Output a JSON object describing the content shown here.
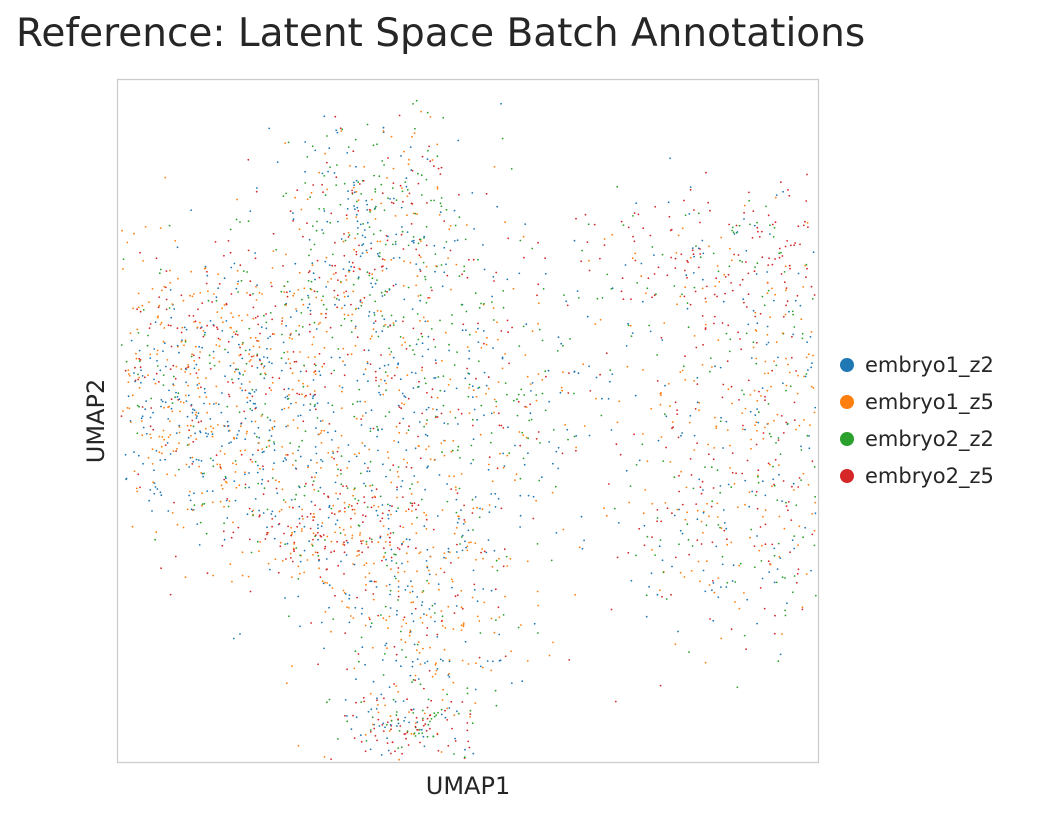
{
  "chart_data": {
    "type": "scatter",
    "title": "Reference: Latent Space Batch Annotations",
    "xlabel": "UMAP1",
    "ylabel": "UMAP2",
    "xticks": [],
    "yticks": [],
    "grid": false,
    "legend_position": "right-outside",
    "series": [
      {
        "name": "embryo1_z2",
        "color": "#1f77b4"
      },
      {
        "name": "embryo1_z5",
        "color": "#ff7f0e"
      },
      {
        "name": "embryo2_z2",
        "color": "#2ca02c"
      },
      {
        "name": "embryo2_z5",
        "color": "#d62728"
      }
    ],
    "point_density": {
      "lobes": [
        {
          "label": "top",
          "cx": -0.35,
          "cy": 0.75,
          "sx": 0.22,
          "sy": 0.3,
          "weight": 0.14,
          "mix": [
            0.25,
            0.2,
            0.3,
            0.25
          ]
        },
        {
          "label": "upper-left",
          "cx": -0.95,
          "cy": 0.35,
          "sx": 0.3,
          "sy": 0.22,
          "weight": 0.12,
          "mix": [
            0.15,
            0.4,
            0.15,
            0.3
          ]
        },
        {
          "label": "left",
          "cx": -1.0,
          "cy": -0.05,
          "sx": 0.32,
          "sy": 0.22,
          "weight": 0.14,
          "mix": [
            0.45,
            0.4,
            0.05,
            0.1
          ]
        },
        {
          "label": "center",
          "cx": -0.05,
          "cy": 0.05,
          "sx": 0.35,
          "sy": 0.3,
          "weight": 0.13,
          "mix": [
            0.3,
            0.25,
            0.3,
            0.15
          ]
        },
        {
          "label": "center-lower-left",
          "cx": -0.55,
          "cy": -0.45,
          "sx": 0.25,
          "sy": 0.15,
          "weight": 0.08,
          "mix": [
            0.1,
            0.35,
            0.15,
            0.4
          ]
        },
        {
          "label": "bottom",
          "cx": -0.2,
          "cy": -0.8,
          "sx": 0.2,
          "sy": 0.28,
          "weight": 0.11,
          "mix": [
            0.35,
            0.4,
            0.1,
            0.15
          ]
        },
        {
          "label": "bottom-tip",
          "cx": -0.2,
          "cy": -1.3,
          "sx": 0.14,
          "sy": 0.08,
          "weight": 0.04,
          "mix": [
            0.1,
            0.1,
            0.35,
            0.45
          ]
        },
        {
          "label": "upper-right",
          "cx": 0.95,
          "cy": 0.7,
          "sx": 0.3,
          "sy": 0.15,
          "weight": 0.07,
          "mix": [
            0.15,
            0.1,
            0.2,
            0.55
          ]
        },
        {
          "label": "right",
          "cx": 1.1,
          "cy": 0.05,
          "sx": 0.3,
          "sy": 0.35,
          "weight": 0.12,
          "mix": [
            0.2,
            0.35,
            0.2,
            0.25
          ]
        },
        {
          "label": "lower-right",
          "cx": 1.0,
          "cy": -0.55,
          "sx": 0.25,
          "sy": 0.22,
          "weight": 0.05,
          "mix": [
            0.2,
            0.2,
            0.25,
            0.35
          ]
        }
      ]
    }
  }
}
